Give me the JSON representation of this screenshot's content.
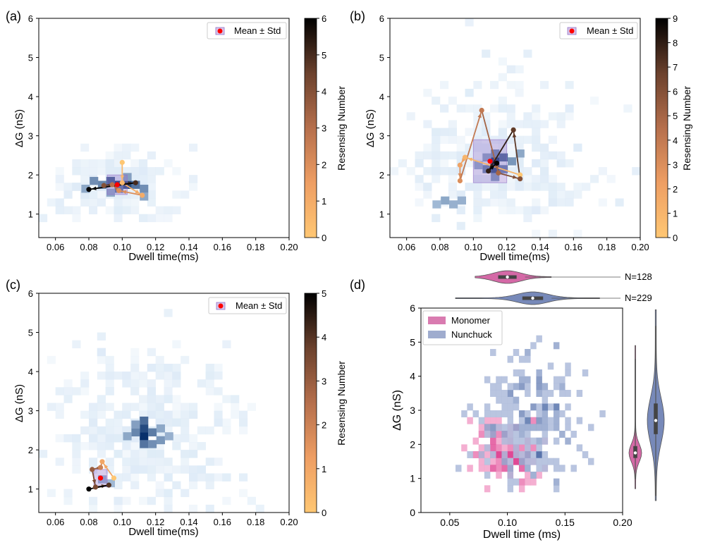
{
  "colors": {
    "heat": "#08306b",
    "heat_light": "#deebf7",
    "cbar_low": "#fbc46a",
    "cbar_mid": "#d6845a",
    "cbar_high": "#000000",
    "std_box": "#9370c8",
    "mean_marker": "#ff0000",
    "monomer": "#cc4f96",
    "monomer_hist": "#e7298a",
    "nunchuck": "#5f74ad",
    "nunchuck_hist": "#4a6fb0"
  },
  "chart_data": [
    {
      "panel": "(a)",
      "type": "heatmap",
      "xlabel": "Dwell time(ms)",
      "ylabel": "ΔG (nS)",
      "xlim": [
        0.05,
        0.2
      ],
      "ylim": [
        0.4,
        6.0
      ],
      "xticks": [
        "0.06",
        "0.08",
        "0.10",
        "0.12",
        "0.14",
        "0.16",
        "0.18",
        "0.20"
      ],
      "yticks": [
        "1",
        "2",
        "3",
        "4",
        "5",
        "6"
      ],
      "legend": "Mean ± Std",
      "colorbar": {
        "label": "Resensing Number",
        "min": 0,
        "max": 6,
        "ticks": [
          "0",
          "1",
          "2",
          "3",
          "4",
          "5",
          "6"
        ]
      },
      "hot_cells": [
        {
          "x": 0.098,
          "y": 1.75,
          "w": 1.0
        },
        {
          "x": 0.103,
          "y": 1.75,
          "w": 0.85
        },
        {
          "x": 0.093,
          "y": 1.85,
          "w": 0.75
        },
        {
          "x": 0.108,
          "y": 1.75,
          "w": 0.6
        },
        {
          "x": 0.088,
          "y": 1.75,
          "w": 0.5
        },
        {
          "x": 0.098,
          "y": 1.65,
          "w": 0.6
        },
        {
          "x": 0.083,
          "y": 1.85,
          "w": 0.45
        },
        {
          "x": 0.113,
          "y": 1.65,
          "w": 0.45
        },
        {
          "x": 0.078,
          "y": 1.65,
          "w": 0.3
        },
        {
          "x": 0.103,
          "y": 1.95,
          "w": 0.35
        },
        {
          "x": 0.113,
          "y": 1.45,
          "w": 0.3
        },
        {
          "x": 0.093,
          "y": 1.55,
          "w": 0.3
        }
      ],
      "blob": {
        "cx": 0.097,
        "cy": 1.8,
        "sx": 0.02,
        "sy": 0.45,
        "n": 140
      },
      "mean": {
        "x": 0.097,
        "y": 1.75,
        "sx": 0.006,
        "sy": 0.25
      },
      "path": [
        {
          "x": 0.1,
          "y": 2.32,
          "r": 0
        },
        {
          "x": 0.1,
          "y": 1.8,
          "r": 0.5
        },
        {
          "x": 0.112,
          "y": 1.48,
          "r": 1
        },
        {
          "x": 0.098,
          "y": 1.6,
          "r": 2
        },
        {
          "x": 0.094,
          "y": 1.75,
          "r": 3
        },
        {
          "x": 0.089,
          "y": 1.73,
          "r": 4
        },
        {
          "x": 0.108,
          "y": 1.8,
          "r": 5
        },
        {
          "x": 0.08,
          "y": 1.63,
          "r": 6
        }
      ]
    },
    {
      "panel": "(b)",
      "type": "heatmap",
      "xlabel": "Dwell time(ms)",
      "ylabel": "ΔG (nS)",
      "xlim": [
        0.05,
        0.2
      ],
      "ylim": [
        0.4,
        6.0
      ],
      "xticks": [
        "0.06",
        "0.08",
        "0.10",
        "0.12",
        "0.14",
        "0.16",
        "0.18",
        "0.20"
      ],
      "yticks": [
        "1",
        "2",
        "3",
        "4",
        "5",
        "6"
      ],
      "legend": "Mean ± Std",
      "colorbar": {
        "label": "Resensing Number",
        "min": 0,
        "max": 9,
        "ticks": [
          "0",
          "1",
          "2",
          "3",
          "4",
          "5",
          "6",
          "7",
          "8",
          "9"
        ]
      },
      "hot_cells": [
        {
          "x": 0.113,
          "y": 2.35,
          "w": 1.0
        },
        {
          "x": 0.113,
          "y": 2.15,
          "w": 0.85
        },
        {
          "x": 0.118,
          "y": 2.45,
          "w": 0.7
        },
        {
          "x": 0.108,
          "y": 2.15,
          "w": 0.55
        },
        {
          "x": 0.118,
          "y": 2.15,
          "w": 0.55
        },
        {
          "x": 0.113,
          "y": 2.55,
          "w": 0.5
        },
        {
          "x": 0.123,
          "y": 2.35,
          "w": 0.4
        },
        {
          "x": 0.108,
          "y": 2.45,
          "w": 0.35
        },
        {
          "x": 0.113,
          "y": 1.95,
          "w": 0.4
        },
        {
          "x": 0.103,
          "y": 2.25,
          "w": 0.3
        },
        {
          "x": 0.128,
          "y": 2.55,
          "w": 0.3
        },
        {
          "x": 0.083,
          "y": 1.35,
          "w": 0.3
        },
        {
          "x": 0.088,
          "y": 1.25,
          "w": 0.25
        },
        {
          "x": 0.093,
          "y": 1.35,
          "w": 0.25
        },
        {
          "x": 0.078,
          "y": 1.25,
          "w": 0.2
        }
      ],
      "blob": {
        "cx": 0.112,
        "cy": 2.4,
        "sx": 0.028,
        "sy": 1.0,
        "n": 320
      },
      "mean": {
        "x": 0.11,
        "y": 2.35,
        "sx": 0.01,
        "sy": 0.55
      },
      "path": [
        {
          "x": 0.128,
          "y": 2.0,
          "r": 0
        },
        {
          "x": 0.095,
          "y": 2.45,
          "r": 1
        },
        {
          "x": 0.092,
          "y": 2.25,
          "r": 2
        },
        {
          "x": 0.092,
          "y": 1.85,
          "r": 3
        },
        {
          "x": 0.105,
          "y": 3.65,
          "r": 4
        },
        {
          "x": 0.115,
          "y": 2.05,
          "r": 5
        },
        {
          "x": 0.128,
          "y": 1.9,
          "r": 6
        },
        {
          "x": 0.124,
          "y": 3.15,
          "r": 7
        },
        {
          "x": 0.109,
          "y": 2.1,
          "r": 8
        },
        {
          "x": 0.114,
          "y": 2.3,
          "r": 9
        }
      ]
    },
    {
      "panel": "(c)",
      "type": "heatmap",
      "xlabel": "Dwell time(ms)",
      "ylabel": "ΔG (nS)",
      "xlim": [
        0.05,
        0.2
      ],
      "ylim": [
        0.4,
        6.0
      ],
      "xticks": [
        "0.06",
        "0.08",
        "0.10",
        "0.12",
        "0.14",
        "0.16",
        "0.18",
        "0.20"
      ],
      "yticks": [
        "1",
        "2",
        "3",
        "4",
        "5",
        "6"
      ],
      "legend": "Mean ± Std",
      "colorbar": {
        "label": "Resensing Number",
        "min": 0,
        "max": 5,
        "ticks": [
          "0",
          "1",
          "2",
          "3",
          "4",
          "5"
        ]
      },
      "hot_cells": [
        {
          "x": 0.113,
          "y": 2.35,
          "w": 1.0
        },
        {
          "x": 0.113,
          "y": 2.55,
          "w": 0.85
        },
        {
          "x": 0.113,
          "y": 2.75,
          "w": 0.65
        },
        {
          "x": 0.118,
          "y": 2.45,
          "w": 0.55
        },
        {
          "x": 0.108,
          "y": 2.45,
          "w": 0.5
        },
        {
          "x": 0.113,
          "y": 2.15,
          "w": 0.6
        },
        {
          "x": 0.123,
          "y": 2.25,
          "w": 0.4
        },
        {
          "x": 0.118,
          "y": 2.15,
          "w": 0.45
        },
        {
          "x": 0.108,
          "y": 2.65,
          "w": 0.35
        },
        {
          "x": 0.103,
          "y": 2.35,
          "w": 0.3
        },
        {
          "x": 0.123,
          "y": 2.55,
          "w": 0.3
        },
        {
          "x": 0.128,
          "y": 2.35,
          "w": 0.25
        },
        {
          "x": 0.088,
          "y": 1.25,
          "w": 0.25
        },
        {
          "x": 0.093,
          "y": 1.15,
          "w": 0.2
        }
      ],
      "blob": {
        "cx": 0.112,
        "cy": 2.5,
        "sx": 0.028,
        "sy": 1.05,
        "n": 360
      },
      "mean": {
        "x": 0.087,
        "y": 1.28,
        "sx": 0.004,
        "sy": 0.22
      },
      "path": [
        {
          "x": 0.095,
          "y": 1.28,
          "r": 0
        },
        {
          "x": 0.088,
          "y": 1.7,
          "r": 1
        },
        {
          "x": 0.087,
          "y": 1.55,
          "r": 2
        },
        {
          "x": 0.082,
          "y": 1.5,
          "r": 3
        },
        {
          "x": 0.084,
          "y": 1.05,
          "r": 3.5
        },
        {
          "x": 0.092,
          "y": 1.1,
          "r": 4
        },
        {
          "x": 0.08,
          "y": 1.0,
          "r": 5
        }
      ]
    },
    {
      "panel": "(d)",
      "type": "heatmap",
      "xlabel": "Dwell time (ms)",
      "ylabel": "ΔG (nS)",
      "xlim": [
        0.025,
        0.2
      ],
      "ylim": [
        0,
        6
      ],
      "xticks": [
        "0.05",
        "0.10",
        "0.15",
        "0.20"
      ],
      "yticks": [
        "0",
        "1",
        "2",
        "3",
        "4",
        "5",
        "6"
      ],
      "legend_items": [
        "Monomer",
        "Nunchuck"
      ],
      "series": [
        {
          "name": "Monomer",
          "n_label": "N=128",
          "cx": 0.098,
          "cy": 1.75,
          "sx": 0.014,
          "sy": 0.45,
          "n": 128,
          "violin_x": {
            "q1": 0.092,
            "median": 0.1,
            "q3": 0.108,
            "min": 0.072,
            "max": 0.138
          },
          "violin_y": {
            "q1": 1.6,
            "median": 1.75,
            "q3": 1.95,
            "min": 0.7,
            "max": 4.9
          }
        },
        {
          "name": "Nunchuck",
          "n_label": "N=229",
          "cx": 0.12,
          "cy": 2.7,
          "sx": 0.022,
          "sy": 0.95,
          "n": 229,
          "violin_x": {
            "q1": 0.113,
            "median": 0.122,
            "q3": 0.131,
            "min": 0.055,
            "max": 0.18
          },
          "violin_y": {
            "q1": 2.3,
            "median": 2.7,
            "q3": 3.2,
            "min": 0.35,
            "max": 5.95
          }
        }
      ]
    }
  ]
}
